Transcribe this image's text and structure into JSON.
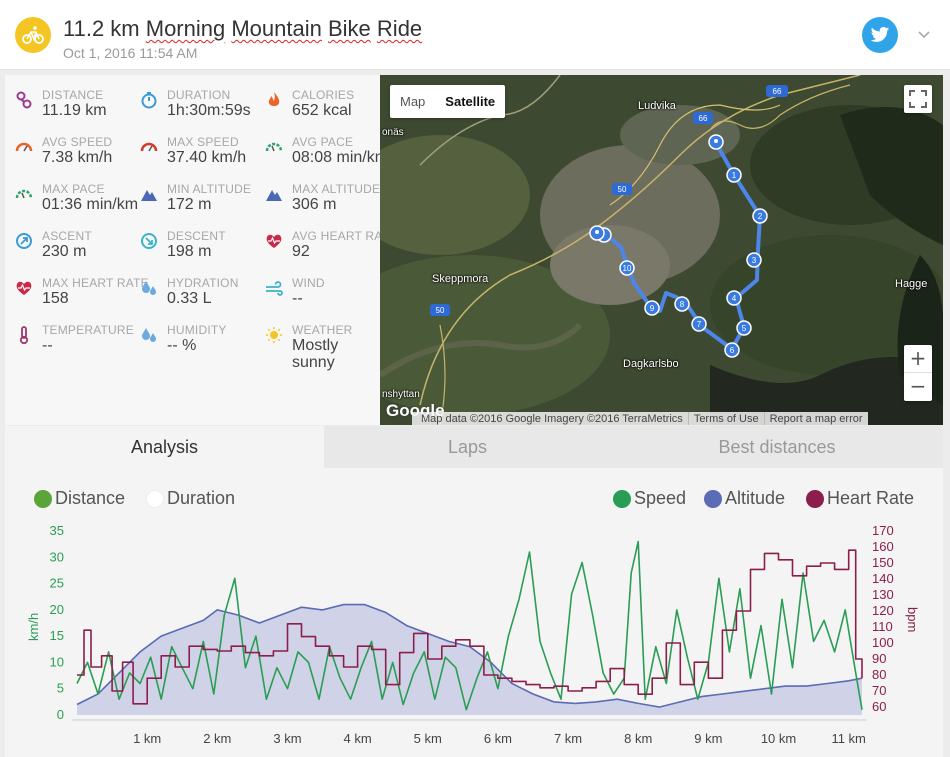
{
  "header": {
    "title_prefix": "11.2 km ",
    "title_word1": "Morning",
    "title_word2": "Mountain",
    "title_word3": "Bike",
    "title_word4": "Ride",
    "date": "Oct 1, 2016 11:54 AM",
    "sport_icon": "bike-icon",
    "share_icon": "twitter-icon",
    "accent": "#f3c623"
  },
  "stats": [
    {
      "name": "distance",
      "label": "DISTANCE",
      "value": "11.19 km",
      "icon": "route-icon",
      "color": "#9b3a8f"
    },
    {
      "name": "duration",
      "label": "DURATION",
      "value": "1h:30m:59s",
      "icon": "stopwatch-icon",
      "color": "#3b9ad9"
    },
    {
      "name": "calories",
      "label": "CALORIES",
      "value": "652 kcal",
      "icon": "flame-icon",
      "color": "#e8642c"
    },
    {
      "name": "avg-speed",
      "label": "AVG SPEED",
      "value": "7.38 km/h",
      "icon": "speedometer-icon",
      "color": "#e8642c"
    },
    {
      "name": "max-speed",
      "label": "MAX SPEED",
      "value": "37.40 km/h",
      "icon": "speedometer-icon",
      "color": "#d9372c"
    },
    {
      "name": "avg-pace",
      "label": "AVG PACE",
      "value": "08:08 min/km",
      "icon": "pace-gauge-icon",
      "color": "#2fa36b"
    },
    {
      "name": "max-pace",
      "label": "MAX PACE",
      "value": "01:36 min/km",
      "icon": "pace-gauge-icon",
      "color": "#2fa36b"
    },
    {
      "name": "min-altitude",
      "label": "MIN ALTITUDE",
      "value": "172 m",
      "icon": "mountain-icon",
      "color": "#4a68b5"
    },
    {
      "name": "max-altitude",
      "label": "MAX ALTITUDE",
      "value": "306 m",
      "icon": "mountain-icon",
      "color": "#4a68b5"
    },
    {
      "name": "ascent",
      "label": "ASCENT",
      "value": "230 m",
      "icon": "ascent-icon",
      "color": "#3b9ad9"
    },
    {
      "name": "descent",
      "label": "DESCENT",
      "value": "198 m",
      "icon": "descent-icon",
      "color": "#3bb3c9"
    },
    {
      "name": "avg-heart-rate",
      "label": "AVG HEART RATE",
      "value": "92",
      "icon": "heart-pulse-icon",
      "color": "#c92a4a"
    },
    {
      "name": "max-heart-rate",
      "label": "MAX HEART RATE",
      "value": "158",
      "icon": "heart-pulse-icon",
      "color": "#c92a4a"
    },
    {
      "name": "hydration",
      "label": "HYDRATION",
      "value": "0.33 L",
      "icon": "water-drops-icon",
      "color": "#6ea8e0"
    },
    {
      "name": "wind",
      "label": "WIND",
      "value": "--",
      "icon": "wind-icon",
      "color": "#3bb3c9"
    },
    {
      "name": "temperature",
      "label": "TEMPERATURE",
      "value": "--",
      "icon": "thermometer-icon",
      "color": "#9b3a6b"
    },
    {
      "name": "humidity",
      "label": "HUMIDITY",
      "value": "-- %",
      "icon": "water-drops-icon",
      "color": "#6ea8e0"
    },
    {
      "name": "weather",
      "label": "WEATHER",
      "value": "Mostly sunny",
      "icon": "sun-icon",
      "color": "#f3c623"
    }
  ],
  "map": {
    "toggle": [
      "Map",
      "Satellite"
    ],
    "selected": "Satellite",
    "places": [
      "Ludvika",
      "Skeppmora",
      "Hagge",
      "Dagkarlsbo",
      "onäs",
      "nshyttan"
    ],
    "road_labels": [
      "66",
      "66",
      "50",
      "50"
    ],
    "markers": [
      "1",
      "2",
      "3",
      "4",
      "5",
      "6",
      "7",
      "8",
      "9",
      "10"
    ],
    "zoom_in": "+",
    "zoom_out": "−",
    "logo": "Google",
    "attribution": [
      "Map data ©2016 Google Imagery ©2016 TerraMetrics",
      "Terms of Use",
      "Report a map error"
    ]
  },
  "tabs": [
    {
      "label": "Analysis",
      "active": true
    },
    {
      "label": "Laps",
      "active": false
    },
    {
      "label": "Best distances",
      "active": false
    }
  ],
  "chart_controls": {
    "x_modes": [
      {
        "label": "Distance",
        "selected": true,
        "color": "#5aa43a"
      },
      {
        "label": "Duration",
        "selected": false,
        "color": "#ffffff"
      }
    ],
    "series_toggles": [
      {
        "label": "Speed",
        "color": "#2a9d54"
      },
      {
        "label": "Altitude",
        "color": "#5b6bb5"
      },
      {
        "label": "Heart Rate",
        "color": "#8b1e4a"
      }
    ]
  },
  "chart_data": {
    "type": "line",
    "xlabel": "",
    "x_ticks": [
      "1 km",
      "2 km",
      "3 km",
      "4 km",
      "5 km",
      "6 km",
      "7 km",
      "8 km",
      "9 km",
      "10 km",
      "11 km"
    ],
    "x_unit": "km",
    "xlim": [
      0,
      11.19
    ],
    "y_left": {
      "label": "km/h",
      "ticks": [
        "0",
        "5",
        "10",
        "15",
        "20",
        "25",
        "30",
        "35"
      ],
      "ylim": [
        0,
        35
      ]
    },
    "y_right": {
      "label": "bpm",
      "ticks": [
        "60",
        "70",
        "80",
        "90",
        "100",
        "110",
        "120",
        "130",
        "140",
        "150",
        "160",
        "170"
      ],
      "ylim": [
        55,
        170
      ]
    },
    "series": [
      {
        "name": "Altitude",
        "axis": "left",
        "kind": "area",
        "color": "#5b6bb5",
        "x": [
          0,
          0.3,
          0.6,
          0.9,
          1.2,
          1.5,
          1.8,
          2.0,
          2.3,
          2.6,
          2.9,
          3.2,
          3.5,
          3.8,
          4.1,
          4.4,
          4.7,
          5.0,
          5.3,
          5.6,
          5.9,
          6.2,
          6.5,
          6.8,
          7.1,
          7.4,
          7.7,
          8.0,
          8.3,
          8.6,
          8.9,
          9.2,
          9.5,
          9.8,
          10.1,
          10.4,
          10.7,
          11.0,
          11.19
        ],
        "values": [
          2,
          4,
          8,
          12,
          15,
          16.5,
          18,
          20,
          19,
          17.5,
          19,
          20.5,
          20,
          21,
          21,
          19.5,
          17,
          15.5,
          14,
          13,
          10,
          6,
          4,
          2.5,
          2.2,
          2.5,
          3,
          2.2,
          1.5,
          2.5,
          3.5,
          4,
          4.5,
          5,
          5.5,
          5.5,
          6,
          6.5,
          7
        ]
      },
      {
        "name": "Speed",
        "axis": "left",
        "kind": "line",
        "color": "#2a9d54",
        "x": [
          0,
          0.15,
          0.3,
          0.45,
          0.6,
          0.75,
          0.9,
          1.05,
          1.2,
          1.35,
          1.5,
          1.65,
          1.8,
          1.95,
          2.1,
          2.25,
          2.4,
          2.55,
          2.7,
          2.85,
          3.0,
          3.15,
          3.3,
          3.45,
          3.6,
          3.75,
          3.9,
          4.05,
          4.2,
          4.35,
          4.5,
          4.65,
          4.8,
          4.95,
          5.1,
          5.25,
          5.4,
          5.55,
          5.7,
          5.85,
          6.0,
          6.15,
          6.3,
          6.45,
          6.6,
          6.75,
          6.9,
          7.05,
          7.2,
          7.35,
          7.5,
          7.65,
          7.8,
          7.9,
          8.0,
          8.1,
          8.25,
          8.4,
          8.55,
          8.7,
          8.85,
          9.0,
          9.15,
          9.3,
          9.45,
          9.6,
          9.75,
          9.9,
          10.05,
          10.2,
          10.35,
          10.5,
          10.65,
          10.8,
          10.95,
          11.1,
          11.19
        ],
        "values": [
          6,
          10,
          4,
          12,
          3,
          8,
          6,
          11,
          3,
          13,
          9,
          5,
          14,
          4,
          19,
          26,
          9,
          15,
          3,
          9,
          5,
          12,
          10,
          3,
          13,
          7,
          3,
          9,
          14,
          3,
          10,
          2,
          8,
          12,
          3,
          11,
          9,
          1,
          7,
          12,
          5,
          15,
          22,
          31,
          14,
          8,
          3,
          23,
          29,
          19,
          8,
          4,
          7,
          27,
          33,
          3,
          13,
          6,
          20,
          11,
          3,
          10,
          26,
          12,
          24,
          7,
          17,
          4,
          22,
          9,
          27,
          14,
          18,
          12,
          20,
          8,
          1
        ]
      },
      {
        "name": "Heart Rate",
        "axis": "right",
        "kind": "step",
        "color": "#8b1e4a",
        "x": [
          0,
          0.1,
          0.2,
          0.35,
          0.5,
          0.65,
          0.8,
          1.0,
          1.2,
          1.4,
          1.6,
          1.8,
          2.0,
          2.2,
          2.4,
          2.6,
          2.8,
          3.0,
          3.2,
          3.4,
          3.6,
          3.8,
          4.0,
          4.2,
          4.4,
          4.6,
          4.8,
          5.0,
          5.2,
          5.4,
          5.6,
          5.8,
          6.0,
          6.2,
          6.4,
          6.6,
          6.8,
          7.0,
          7.2,
          7.4,
          7.6,
          7.8,
          8.0,
          8.2,
          8.4,
          8.6,
          8.8,
          9.0,
          9.2,
          9.4,
          9.6,
          9.8,
          10.0,
          10.2,
          10.4,
          10.6,
          10.8,
          11.0,
          11.1,
          11.19
        ],
        "values": [
          80,
          108,
          85,
          92,
          70,
          88,
          62,
          78,
          92,
          85,
          98,
          96,
          95,
          98,
          94,
          92,
          95,
          112,
          104,
          98,
          92,
          85,
          98,
          96,
          74,
          94,
          106,
          90,
          98,
          102,
          98,
          80,
          78,
          76,
          74,
          72,
          73,
          70,
          72,
          76,
          84,
          74,
          68,
          78,
          100,
          74,
          88,
          78,
          108,
          120,
          146,
          156,
          152,
          142,
          148,
          150,
          146,
          158,
          90,
          78
        ]
      }
    ]
  }
}
